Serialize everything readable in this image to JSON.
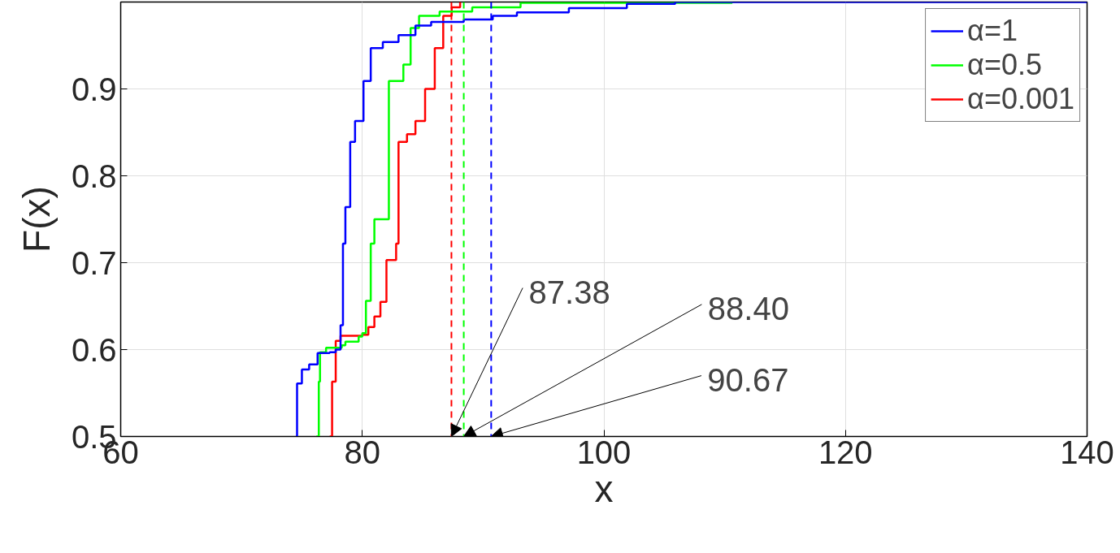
{
  "chart_data": {
    "type": "step",
    "xlabel": "x",
    "ylabel": "F(x)",
    "xlim": [
      60,
      140
    ],
    "ylim": [
      0.5,
      1.0
    ],
    "xticks": [
      60,
      80,
      100,
      120,
      140
    ],
    "yticks": [
      0.5,
      0.6,
      0.7,
      0.8,
      0.9
    ],
    "grid": true,
    "legend": "top right",
    "line_style": "solid",
    "marker": "none",
    "series": [
      {
        "name": "α=1",
        "color": "#0000ff",
        "x": [
          74.5,
          74.6,
          75.0,
          75.6,
          76.3,
          77.3,
          77.8,
          78.2,
          78.4,
          78.6,
          79.0,
          79.4,
          80.1,
          80.7,
          81.7,
          83.0,
          84.4,
          85.7,
          88.4,
          90.8,
          92.8,
          97.1,
          101.9,
          105.9,
          140
        ],
        "values": [
          0.5,
          0.561,
          0.577,
          0.583,
          0.596,
          0.597,
          0.6,
          0.628,
          0.722,
          0.764,
          0.839,
          0.863,
          0.909,
          0.947,
          0.954,
          0.962,
          0.973,
          0.977,
          0.98,
          0.984,
          0.988,
          0.993,
          0.998,
          1.0,
          1.0
        ]
      },
      {
        "name": "α=0.5",
        "color": "#00ff00",
        "x": [
          76.2,
          76.4,
          76.5,
          77.0,
          78.3,
          78.6,
          79.7,
          80.0,
          80.3,
          80.7,
          81.0,
          82.2,
          83.4,
          84.0,
          84.7,
          86.4,
          89.1,
          93.1,
          110.6
        ],
        "values": [
          0.5,
          0.563,
          0.597,
          0.602,
          0.605,
          0.609,
          0.615,
          0.619,
          0.656,
          0.722,
          0.75,
          0.909,
          0.928,
          0.97,
          0.984,
          0.989,
          0.994,
          0.999,
          1.0
        ]
      },
      {
        "name": "α=0.001",
        "color": "#ff0000",
        "x": [
          77.3,
          77.5,
          77.8,
          78.2,
          80.0,
          80.5,
          81.0,
          81.5,
          82.0,
          82.8,
          83.0,
          83.7,
          84.4,
          85.2,
          86.0,
          86.7,
          87.4,
          88.1
        ],
        "values": [
          0.5,
          0.563,
          0.61,
          0.616,
          0.617,
          0.626,
          0.638,
          0.655,
          0.703,
          0.722,
          0.839,
          0.848,
          0.863,
          0.9,
          0.947,
          0.984,
          0.994,
          1.0
        ]
      }
    ],
    "ref_lines": [
      {
        "axis": "x",
        "value": 87.38,
        "color": "#ff0000",
        "line_style": "dashed"
      },
      {
        "axis": "x",
        "value": 88.4,
        "color": "#00ff00",
        "line_style": "dashed"
      },
      {
        "axis": "x",
        "value": 90.67,
        "color": "#0000ff",
        "line_style": "dashed"
      }
    ],
    "annotations": [
      {
        "text": "87.38",
        "x": 87.38,
        "y": 0.5
      },
      {
        "text": "88.40",
        "x": 88.4,
        "y": 0.5
      },
      {
        "text": "90.67",
        "x": 90.67,
        "y": 0.5
      }
    ]
  }
}
